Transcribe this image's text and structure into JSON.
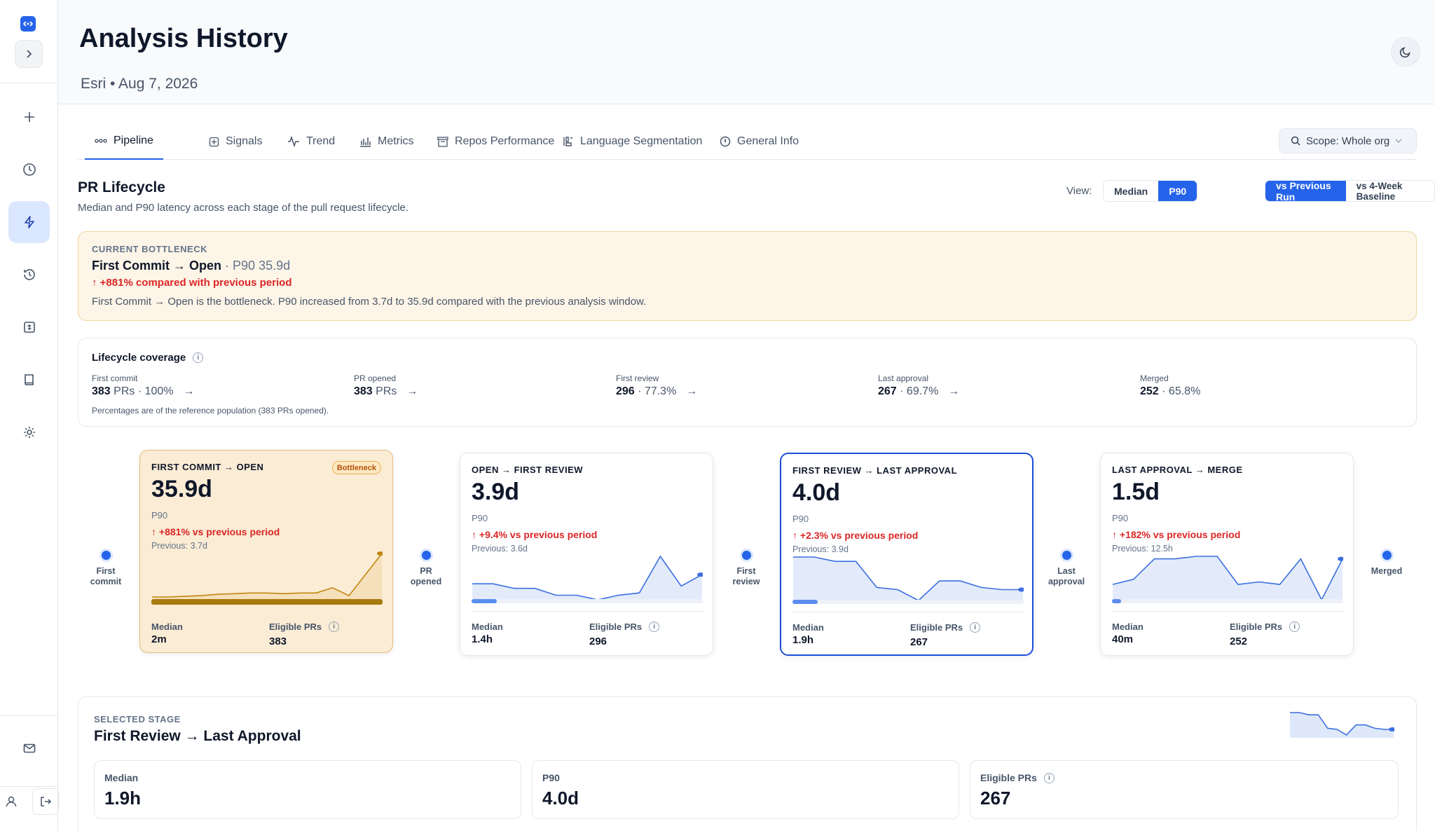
{
  "header": {
    "title": "Analysis History",
    "subtitle": "Esri • Aug 7, 2026"
  },
  "tabs": [
    {
      "label": "Pipeline",
      "icon": "pipeline-icon"
    },
    {
      "label": "Signals",
      "icon": "signals-icon"
    },
    {
      "label": "Trend",
      "icon": "trend-icon"
    },
    {
      "label": "Metrics",
      "icon": "metrics-icon"
    },
    {
      "label": "Repos Performance",
      "icon": "repos-icon"
    },
    {
      "label": "Language Segmentation",
      "icon": "language-icon"
    },
    {
      "label": "General Info",
      "icon": "info-icon"
    }
  ],
  "scope": {
    "label": "Scope: Whole org"
  },
  "section": {
    "title": "PR Lifecycle",
    "description": "Median and P90 latency across each stage of the pull request lifecycle."
  },
  "view": {
    "label": "View:",
    "stat_options": [
      "Median",
      "P90"
    ],
    "stat_selected": "P90",
    "compare_options": [
      "vs Previous Run",
      "vs 4-Week Baseline"
    ],
    "compare_selected": "vs Previous Run"
  },
  "bottleneck": {
    "kicker": "CURRENT BOTTLENECK",
    "title": "First Commit → Open",
    "p90": "· P90 35.9d",
    "delta": "↑ +881% compared with previous period",
    "description": "First Commit → Open is the bottleneck. P90 increased from 3.7d to 35.9d compared with the previous analysis window."
  },
  "coverage": {
    "title": "Lifecycle coverage",
    "items": [
      {
        "label": "First commit",
        "count": "383",
        "rest": " PRs · 100%"
      },
      {
        "label": "PR opened",
        "count": "383",
        "rest": " PRs"
      },
      {
        "label": "First review",
        "count": "296",
        "rest": " · 77.3%"
      },
      {
        "label": "Last approval",
        "count": "267",
        "rest": " · 69.7%"
      },
      {
        "label": "Merged",
        "count": "252",
        "rest": " · 65.8%"
      }
    ],
    "note": "Percentages are of the reference population (383 PRs opened)."
  },
  "nodes": [
    "First commit",
    "PR opened",
    "First review",
    "Last approval",
    "Merged"
  ],
  "stages": [
    {
      "title": "FIRST COMMIT → OPEN",
      "badge": "Bottleneck",
      "value": "35.9d",
      "stat": "P90",
      "delta": "↑ +881% vs previous period",
      "previous": "Previous: 3.7d",
      "median_label": "Median",
      "median": "2m",
      "eligible_label": "Eligible PRs",
      "eligible": "383",
      "bar": 1.0,
      "spark": [
        3,
        3,
        3.5,
        4,
        5,
        5.5,
        6,
        6,
        5.5,
        6,
        6,
        10,
        4,
        20,
        35.9
      ]
    },
    {
      "title": "OPEN → FIRST REVIEW",
      "value": "3.9d",
      "stat": "P90",
      "delta": "↑ +9.4% vs previous period",
      "previous": "Previous: 3.6d",
      "median_label": "Median",
      "median": "1.4h",
      "eligible_label": "Eligible PRs",
      "eligible": "296",
      "bar": 0.11,
      "spark": [
        2.7,
        2.7,
        2.5,
        2.5,
        2.2,
        2.2,
        2.0,
        2.2,
        2.3,
        3.9,
        2.6,
        3.1
      ]
    },
    {
      "title": "FIRST REVIEW → LAST APPROVAL",
      "value": "4.0d",
      "stat": "P90",
      "delta": "↑ +2.3% vs previous period",
      "previous": "Previous: 3.9d",
      "median_label": "Median",
      "median": "1.9h",
      "eligible_label": "Eligible PRs",
      "eligible": "267",
      "bar": 0.11,
      "spark": [
        4.0,
        4.0,
        3.8,
        3.8,
        2.6,
        2.5,
        2.0,
        2.9,
        2.9,
        2.6,
        2.5,
        2.5
      ]
    },
    {
      "title": "LAST APPROVAL → MERGE",
      "value": "1.5d",
      "stat": "P90",
      "delta": "↑ +182% vs previous period",
      "previous": "Previous: 12.5h",
      "median_label": "Median",
      "median": "40m",
      "eligible_label": "Eligible PRs",
      "eligible": "252",
      "bar": 0.04,
      "spark": [
        1.0,
        1.1,
        1.5,
        1.5,
        1.55,
        1.55,
        1.0,
        1.05,
        1.0,
        1.5,
        0.7,
        1.5
      ]
    }
  ],
  "selected": {
    "kicker": "SELECTED STAGE",
    "title": "First Review → Last Approval",
    "boxes": [
      {
        "label": "Median",
        "value": "1.9h"
      },
      {
        "label": "P90",
        "value": "4.0d"
      },
      {
        "label": "Eligible PRs",
        "value": "267"
      }
    ],
    "spark": [
      4.0,
      4.0,
      3.8,
      3.8,
      2.6,
      2.5,
      2.0,
      2.9,
      2.9,
      2.6,
      2.5,
      2.5
    ]
  },
  "colors": {
    "accent": "#2563eb",
    "bottleneck": "#b7860b",
    "danger": "#dc2626"
  }
}
